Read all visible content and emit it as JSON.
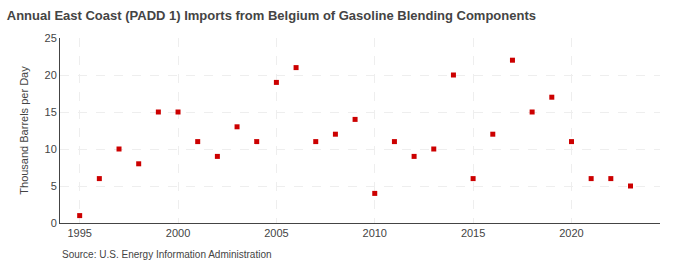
{
  "chart_data": {
    "type": "scatter",
    "title": "Annual East Coast (PADD 1) Imports from Belgium of Gasoline Blending Components",
    "ylabel": "Thousand Barrels per Day",
    "annotations": [
      "Source: U.S. Energy Information Administration"
    ],
    "x": [
      1995,
      1996,
      1997,
      1998,
      1999,
      2000,
      2001,
      2002,
      2003,
      2004,
      2005,
      2006,
      2007,
      2008,
      2009,
      2010,
      2011,
      2012,
      2013,
      2014,
      2015,
      2016,
      2017,
      2018,
      2019,
      2020,
      2021,
      2022,
      2023
    ],
    "values": [
      1,
      6,
      10,
      8,
      15,
      15,
      11,
      9,
      13,
      11,
      19,
      21,
      11,
      12,
      14,
      4,
      11,
      9,
      10,
      20,
      6,
      12,
      22,
      15,
      17,
      11,
      6,
      6,
      5
    ],
    "color": "#cc0000",
    "marker": "square",
    "xlim": [
      1994,
      2024.5
    ],
    "ylim": [
      0,
      25
    ],
    "xticks": [
      1995,
      2000,
      2005,
      2010,
      2015,
      2020
    ],
    "yticks": [
      0,
      5,
      10,
      15,
      20,
      25
    ],
    "grid": true
  }
}
